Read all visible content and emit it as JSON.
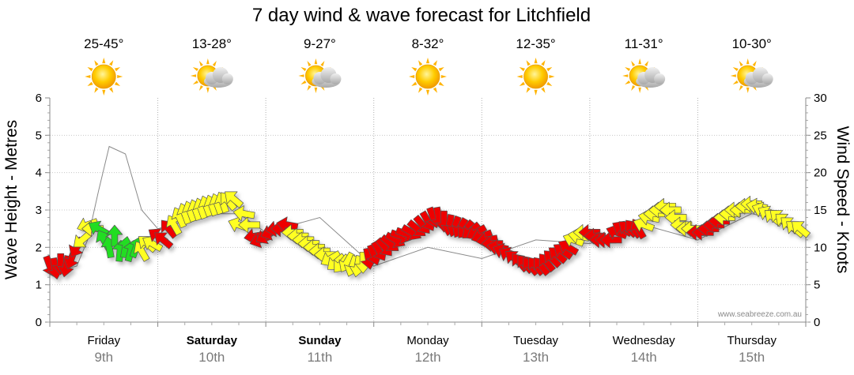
{
  "title": "7 day wind & wave forecast for Litchfield",
  "watermark": "www.seabreeze.com.au",
  "days": [
    {
      "day": "Friday",
      "date": "9th",
      "temps": "25-45°",
      "icon": "sun-icon",
      "bold": false
    },
    {
      "day": "Saturday",
      "date": "10th",
      "temps": "13-28°",
      "icon": "partly-cloudy-icon",
      "bold": true
    },
    {
      "day": "Sunday",
      "date": "11th",
      "temps": "9-27°",
      "icon": "partly-cloudy-icon",
      "bold": true
    },
    {
      "day": "Monday",
      "date": "12th",
      "temps": "8-32°",
      "icon": "sun-icon",
      "bold": false
    },
    {
      "day": "Tuesday",
      "date": "13th",
      "temps": "12-35°",
      "icon": "sun-icon",
      "bold": false
    },
    {
      "day": "Wednesday",
      "date": "14th",
      "temps": "11-31°",
      "icon": "partly-cloudy-icon",
      "bold": false
    },
    {
      "day": "Thursday",
      "date": "15th",
      "temps": "10-30°",
      "icon": "partly-cloudy-icon",
      "bold": false
    }
  ],
  "colors": {
    "green": "#22dd22",
    "yellow": "#ffff22",
    "red": "#ee0000",
    "sun": "#ffcc00",
    "cloud": "#b8b8b8"
  },
  "chart_data": {
    "type": "line",
    "y_left": {
      "label": "Wave Height - Metres",
      "range": [
        0,
        6
      ],
      "ticks": [
        0,
        1,
        2,
        3,
        4,
        5,
        6
      ]
    },
    "y_right": {
      "label": "Wind Speed - Knots",
      "range": [
        0,
        30
      ],
      "ticks": [
        0,
        5,
        10,
        15,
        20,
        25,
        30
      ]
    },
    "grid": true,
    "series": [
      {
        "unit": "knots",
        "x_day": [
          0.0,
          0.05,
          0.1,
          0.15,
          0.2,
          0.25,
          0.3,
          0.35,
          0.4,
          0.45,
          0.5,
          0.55,
          0.6,
          0.65,
          0.7,
          0.75,
          0.8,
          0.85,
          0.9,
          0.95,
          1.0,
          1.05,
          1.1,
          1.15,
          1.2,
          1.25,
          1.3,
          1.35,
          1.4,
          1.45,
          1.5,
          1.55,
          1.6,
          1.65,
          1.7,
          1.75,
          1.8,
          1.85,
          1.9,
          1.95,
          2.0,
          2.05,
          2.1,
          2.15,
          2.2,
          2.25,
          2.3,
          2.35,
          2.4,
          2.45,
          2.5,
          2.55,
          2.6,
          2.65,
          2.7,
          2.75,
          2.8,
          2.85,
          2.9,
          2.95,
          3.0,
          3.05,
          3.1,
          3.15,
          3.2,
          3.25,
          3.3,
          3.35,
          3.4,
          3.45,
          3.5,
          3.55,
          3.6,
          3.65,
          3.7,
          3.75,
          3.8,
          3.85,
          3.9,
          3.95,
          4.0,
          4.05,
          4.1,
          4.15,
          4.2,
          4.25,
          4.3,
          4.35,
          4.4,
          4.45,
          4.5,
          4.55,
          4.6,
          4.65,
          4.7,
          4.75,
          4.8,
          4.85,
          4.9,
          4.95,
          5.0,
          5.05,
          5.1,
          5.15,
          5.2,
          5.25,
          5.3,
          5.35,
          5.4,
          5.45,
          5.5,
          5.55,
          5.6,
          5.65,
          5.7,
          5.75,
          5.8,
          5.85,
          5.9,
          5.95,
          6.0,
          6.05,
          6.1,
          6.15,
          6.2,
          6.25,
          6.3,
          6.35,
          6.4,
          6.45,
          6.5,
          6.55,
          6.6,
          6.65,
          6.7,
          6.75,
          6.8,
          6.85,
          6.9,
          6.95
        ],
        "speed": [
          7.5,
          7.2,
          7.8,
          7.5,
          8.5,
          10,
          11,
          13,
          12.5,
          12.5,
          11,
          10,
          11.5,
          9.5,
          10,
          9.5,
          10,
          9.5,
          10.5,
          10.5,
          11.5,
          11,
          12.5,
          13,
          14,
          14.5,
          14.8,
          15,
          15.2,
          15.5,
          15.6,
          15.8,
          16,
          16.2,
          16.5,
          13,
          14.5,
          13,
          11.5,
          11,
          11.5,
          12,
          12.5,
          12.5,
          13,
          12,
          11.5,
          11,
          10.5,
          10,
          9.5,
          9,
          8.5,
          8,
          7.8,
          8,
          7.5,
          7.5,
          8,
          8.5,
          9,
          9.5,
          10,
          10.5,
          11,
          11.5,
          11.8,
          12,
          12.5,
          13,
          13.5,
          14,
          14,
          13.5,
          13,
          12.8,
          12.6,
          12.4,
          12.2,
          12,
          11.5,
          11,
          10.5,
          10,
          9.5,
          9,
          8.5,
          8,
          7.8,
          7.5,
          7.5,
          7.5,
          8,
          8.5,
          9,
          9.5,
          10,
          11,
          11.5,
          12,
          12,
          11.5,
          11,
          11,
          11,
          12,
          12.5,
          12.5,
          12.5,
          12.5,
          13,
          14,
          14.5,
          15,
          15.5,
          15,
          14,
          13,
          12.5,
          12.5,
          12,
          12,
          12.5,
          13,
          13.5,
          14,
          14.5,
          15,
          15,
          15.5,
          15.8,
          15.5,
          15,
          14.5,
          14,
          14,
          13.5,
          13,
          12.5,
          12.5
        ],
        "colors": [
          "red",
          "red",
          "red",
          "red",
          "red",
          "red",
          "yellow",
          "yellow",
          "yellow",
          "green",
          "green",
          "green",
          "green",
          "green",
          "green",
          "green",
          "green",
          "yellow",
          "yellow",
          "yellow",
          "red",
          "red",
          "red",
          "yellow",
          "yellow",
          "yellow",
          "yellow",
          "yellow",
          "yellow",
          "yellow",
          "yellow",
          "yellow",
          "yellow",
          "yellow",
          "yellow",
          "yellow",
          "yellow",
          "yellow",
          "red",
          "red",
          "red",
          "red",
          "red",
          "red",
          "red",
          "yellow",
          "yellow",
          "yellow",
          "yellow",
          "yellow",
          "yellow",
          "yellow",
          "yellow",
          "yellow",
          "yellow",
          "yellow",
          "yellow",
          "yellow",
          "yellow",
          "red",
          "red",
          "red",
          "red",
          "red",
          "red",
          "red",
          "red",
          "red",
          "red",
          "red",
          "red",
          "red",
          "red",
          "red",
          "red",
          "red",
          "red",
          "red",
          "red",
          "red",
          "red",
          "red",
          "red",
          "red",
          "red",
          "red",
          "red",
          "red",
          "red",
          "red",
          "red",
          "red",
          "red",
          "red",
          "red",
          "red",
          "red",
          "yellow",
          "yellow",
          "yellow",
          "red",
          "red",
          "red",
          "red",
          "red",
          "red",
          "red",
          "red",
          "red",
          "red",
          "yellow",
          "yellow",
          "yellow",
          "yellow",
          "yellow",
          "yellow",
          "yellow",
          "yellow",
          "yellow",
          "yellow",
          "red",
          "red",
          "red",
          "red",
          "red",
          "yellow",
          "yellow",
          "yellow",
          "yellow",
          "yellow",
          "yellow",
          "yellow",
          "yellow",
          "yellow",
          "yellow",
          "yellow",
          "yellow",
          "yellow",
          "yellow",
          "yellow"
        ],
        "direction_deg": [
          70,
          80,
          90,
          100,
          110,
          120,
          140,
          160,
          180,
          210,
          240,
          260,
          270,
          275,
          280,
          285,
          290,
          240,
          220,
          210,
          215,
          220,
          230,
          240,
          245,
          250,
          250,
          250,
          250,
          250,
          250,
          250,
          250,
          230,
          220,
          200,
          190,
          180,
          170,
          160,
          150,
          160,
          170,
          180,
          190,
          180,
          180,
          180,
          180,
          180,
          180,
          180,
          150,
          140,
          130,
          120,
          110,
          100,
          90,
          80,
          70,
          60,
          50,
          40,
          30,
          20,
          20,
          30,
          40,
          50,
          60,
          70,
          80,
          90,
          100,
          110,
          120,
          130,
          140,
          150,
          160,
          170,
          180,
          190,
          200,
          210,
          220,
          230,
          230,
          230,
          230,
          230,
          230,
          225,
          220,
          215,
          210,
          200,
          190,
          180,
          180,
          180,
          180,
          180,
          180,
          200,
          210,
          220,
          230,
          240,
          200,
          190,
          180,
          180,
          180,
          180,
          180,
          180,
          180,
          180,
          180,
          180,
          180,
          180,
          180,
          180,
          180,
          180,
          180,
          180,
          180,
          190,
          200,
          210,
          220,
          220,
          220,
          220,
          220,
          220
        ]
      },
      {
        "unit": "metres",
        "x_day": [
          0.0,
          0.25,
          0.35,
          0.45,
          0.55,
          0.7,
          0.85,
          1.0,
          1.25,
          1.5,
          1.75,
          2.0,
          2.5,
          3.0,
          3.5,
          4.0,
          4.5,
          5.0,
          5.5,
          6.0,
          6.5,
          6.95
        ],
        "values": [
          1.3,
          1.5,
          2.2,
          3.5,
          4.7,
          4.5,
          3.0,
          2.5,
          2.7,
          2.9,
          2.9,
          2.4,
          2.8,
          1.5,
          2.0,
          1.7,
          2.2,
          2.1,
          2.6,
          2.2,
          2.9,
          2.6
        ]
      }
    ]
  }
}
